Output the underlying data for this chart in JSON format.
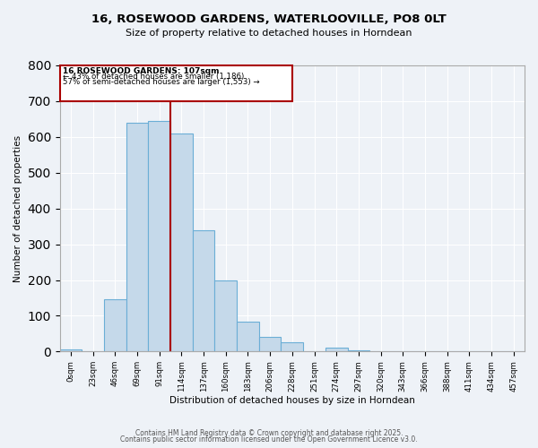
{
  "title": "16, ROSEWOOD GARDENS, WATERLOOVILLE, PO8 0LT",
  "subtitle": "Size of property relative to detached houses in Horndean",
  "xlabel": "Distribution of detached houses by size in Horndean",
  "ylabel": "Number of detached properties",
  "bar_labels": [
    "0sqm",
    "23sqm",
    "46sqm",
    "69sqm",
    "91sqm",
    "114sqm",
    "137sqm",
    "160sqm",
    "183sqm",
    "206sqm",
    "228sqm",
    "251sqm",
    "274sqm",
    "297sqm",
    "320sqm",
    "343sqm",
    "366sqm",
    "388sqm",
    "411sqm",
    "434sqm",
    "457sqm"
  ],
  "bar_heights": [
    5,
    0,
    145,
    640,
    645,
    610,
    338,
    200,
    83,
    42,
    27,
    0,
    12,
    3,
    0,
    0,
    0,
    0,
    0,
    0,
    0
  ],
  "bar_color": "#c5d9ea",
  "bar_edge_color": "#6baed6",
  "ylim": [
    0,
    800
  ],
  "yticks": [
    0,
    100,
    200,
    300,
    400,
    500,
    600,
    700,
    800
  ],
  "property_line_x": 5,
  "property_label": "16 ROSEWOOD GARDENS: 107sqm",
  "annotation_line1": "← 43% of detached houses are smaller (1,186)",
  "annotation_line2": "57% of semi-detached houses are larger (1,553) →",
  "box_color": "#aa0000",
  "background_color": "#eef2f7",
  "footer1": "Contains HM Land Registry data © Crown copyright and database right 2025.",
  "footer2": "Contains public sector information licensed under the Open Government Licence v3.0.",
  "num_bins": 21,
  "bin_width": 1
}
